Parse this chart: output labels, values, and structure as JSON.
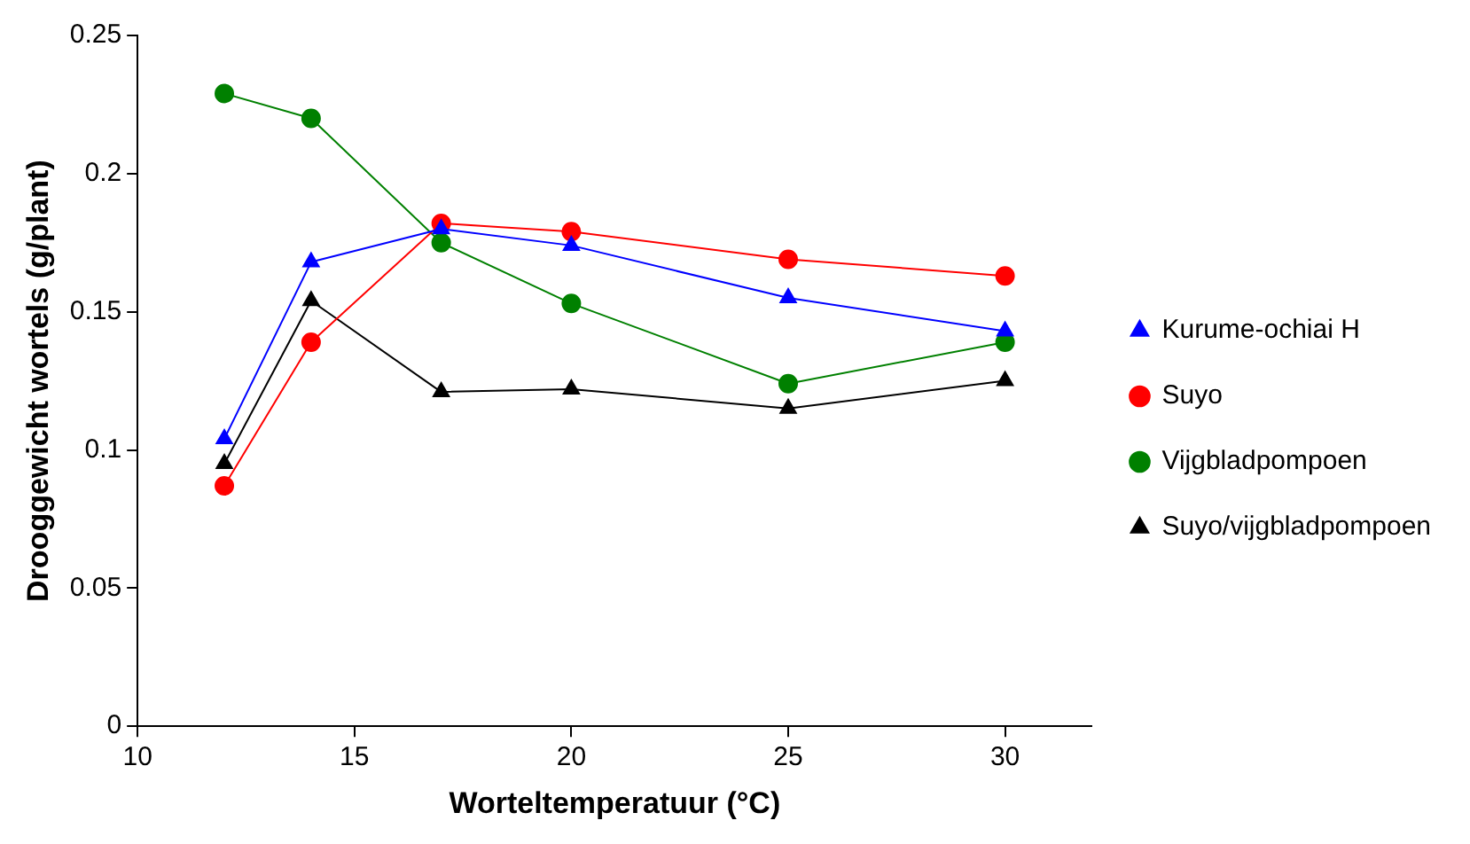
{
  "chart_data": {
    "type": "line",
    "xlabel": "Worteltemperatuur (°C)",
    "ylabel": "Drooggewicht wortels (g/plant)",
    "x": [
      12,
      14,
      17,
      20,
      25,
      30
    ],
    "series": [
      {
        "name": "Kurume-ochiai H",
        "color": "#0000ff",
        "marker": "triangle",
        "values": [
          0.104,
          0.168,
          0.18,
          0.174,
          0.155,
          0.143
        ]
      },
      {
        "name": "Suyo",
        "color": "#ff0000",
        "marker": "circle",
        "values": [
          0.087,
          0.139,
          0.182,
          0.179,
          0.169,
          0.163
        ]
      },
      {
        "name": "Vijgbladpompoen",
        "color": "#008000",
        "marker": "circle",
        "values": [
          0.229,
          0.22,
          0.175,
          0.153,
          0.124,
          0.139
        ]
      },
      {
        "name": "Suyo/vijgbladpompoen",
        "color": "#000000",
        "marker": "triangle",
        "values": [
          0.095,
          0.154,
          0.121,
          0.122,
          0.115,
          0.125
        ]
      }
    ],
    "xlim": [
      10,
      32
    ],
    "xticks": [
      10,
      15,
      20,
      25,
      30
    ],
    "ylim": [
      0,
      0.25
    ],
    "yticks": [
      0,
      0.05,
      0.1,
      0.15,
      0.2,
      0.25
    ],
    "grid": false,
    "legend": "right",
    "line_style": "solid"
  }
}
